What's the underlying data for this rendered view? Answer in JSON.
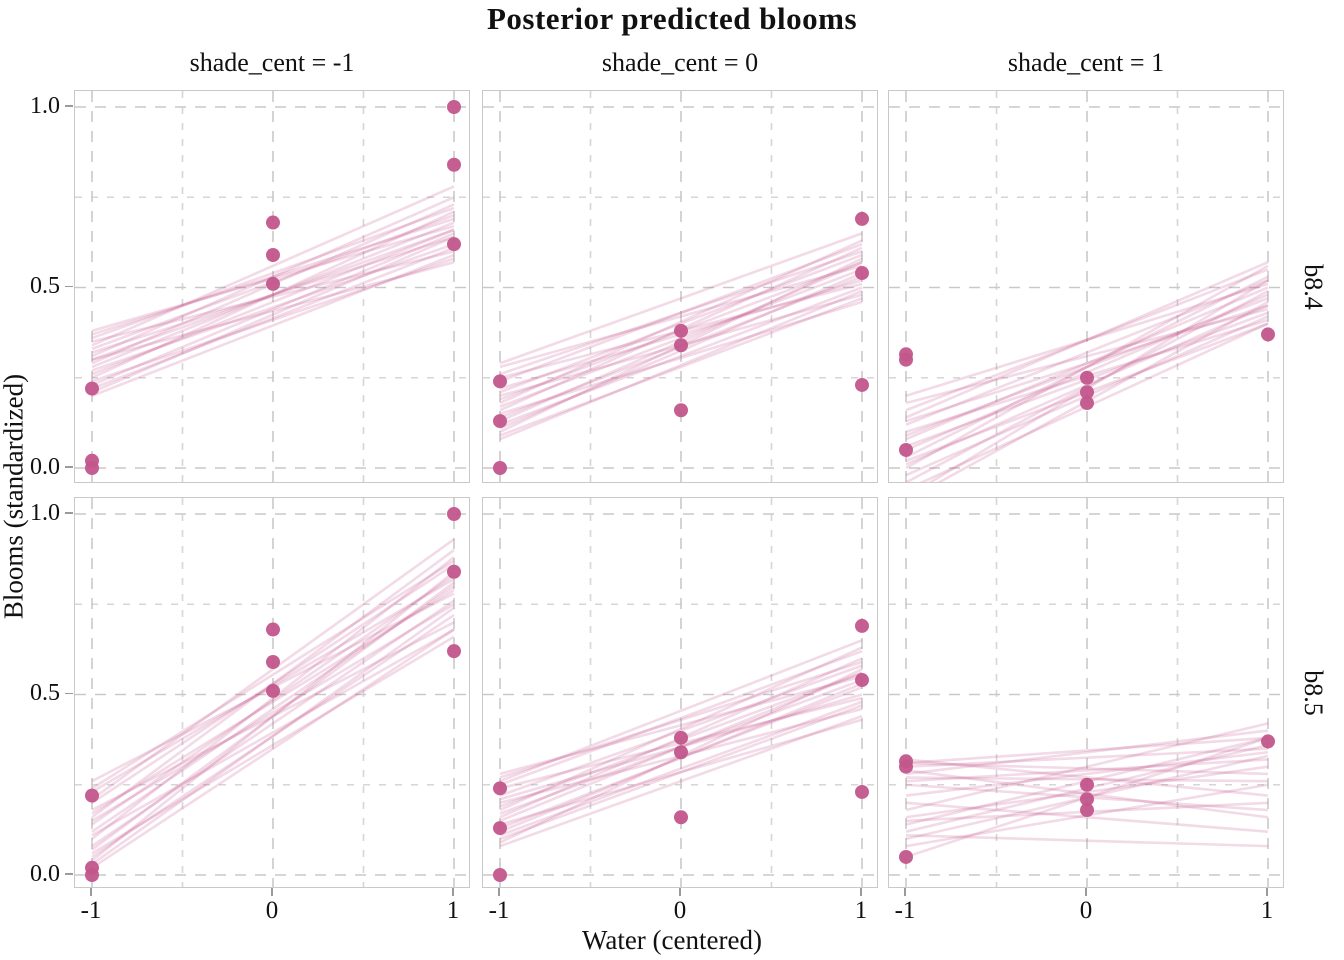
{
  "chart_data": {
    "type": "scatter",
    "title": "Posterior predicted blooms",
    "xlabel": "Water (centered)",
    "ylabel": "Blooms (standardized)",
    "col_facets": [
      "shade_cent = -1",
      "shade_cent = 0",
      "shade_cent = 1"
    ],
    "row_facets": [
      "b8.4",
      "b8.5"
    ],
    "x_tick_labels": [
      "-1",
      "0",
      "1"
    ],
    "y_tick_labels": [
      "1.0",
      "0.5",
      "0.0"
    ],
    "x_ticks": [
      -1,
      0,
      1
    ],
    "y_ticks": [
      1.0,
      0.5,
      0.0
    ],
    "xlim": [
      -1.1,
      1.1
    ],
    "ylim": [
      -0.05,
      1.05
    ],
    "grid": "dashed gray, major at ticks and minor at halves",
    "legend": "none",
    "n_posterior_lines_per_panel": 20,
    "colors": {
      "point": "#C2568C",
      "line": "#C2568C",
      "line_opacity": 0.22,
      "strip_bg": "#B3DAC6",
      "grid_major": "#c9c9c9",
      "grid_minor": "#d6d6d6",
      "panel_border": "#c9c9c9",
      "tick": "#9a9a9a",
      "text": "#111111"
    },
    "panels": [
      {
        "row": "b8.4",
        "col": "shade_cent = -1",
        "points": [
          [
            -1,
            0.0
          ],
          [
            -1,
            0.02
          ],
          [
            -1,
            0.22
          ],
          [
            0,
            0.51
          ],
          [
            0,
            0.59
          ],
          [
            0,
            0.68
          ],
          [
            1,
            0.62
          ],
          [
            1,
            0.84
          ],
          [
            1,
            1.0
          ]
        ],
        "lines": [
          [
            0.3,
            0.66
          ],
          [
            0.27,
            0.62
          ],
          [
            0.33,
            0.7
          ],
          [
            0.24,
            0.58
          ],
          [
            0.36,
            0.72
          ],
          [
            0.21,
            0.64
          ],
          [
            0.31,
            0.75
          ],
          [
            0.28,
            0.68
          ],
          [
            0.35,
            0.6
          ],
          [
            0.25,
            0.71
          ],
          [
            0.38,
            0.67
          ],
          [
            0.22,
            0.61
          ],
          [
            0.32,
            0.64
          ],
          [
            0.29,
            0.73
          ],
          [
            0.26,
            0.66
          ],
          [
            0.34,
            0.78
          ],
          [
            0.2,
            0.59
          ],
          [
            0.37,
            0.69
          ],
          [
            0.3,
            0.57
          ],
          [
            0.23,
            0.65
          ]
        ]
      },
      {
        "row": "b8.4",
        "col": "shade_cent = 0",
        "points": [
          [
            -1,
            0.0
          ],
          [
            -1,
            0.13
          ],
          [
            -1,
            0.24
          ],
          [
            0,
            0.16
          ],
          [
            0,
            0.34
          ],
          [
            0,
            0.38
          ],
          [
            1,
            0.23
          ],
          [
            1,
            0.54
          ],
          [
            1,
            0.69
          ]
        ],
        "lines": [
          [
            0.17,
            0.55
          ],
          [
            0.12,
            0.5
          ],
          [
            0.21,
            0.59
          ],
          [
            0.09,
            0.47
          ],
          [
            0.24,
            0.62
          ],
          [
            0.14,
            0.53
          ],
          [
            0.19,
            0.57
          ],
          [
            0.1,
            0.58
          ],
          [
            0.26,
            0.6
          ],
          [
            0.15,
            0.46
          ],
          [
            0.22,
            0.52
          ],
          [
            0.08,
            0.49
          ],
          [
            0.18,
            0.63
          ],
          [
            0.28,
            0.56
          ],
          [
            0.11,
            0.54
          ],
          [
            0.2,
            0.48
          ],
          [
            0.16,
            0.61
          ],
          [
            0.13,
            0.57
          ],
          [
            0.25,
            0.51
          ],
          [
            0.29,
            0.65
          ]
        ]
      },
      {
        "row": "b8.4",
        "col": "shade_cent = 1",
        "points": [
          [
            -1,
            0.05
          ],
          [
            -1,
            0.3
          ],
          [
            -1,
            0.315
          ],
          [
            0,
            0.18
          ],
          [
            0,
            0.21
          ],
          [
            0,
            0.25
          ],
          [
            1,
            0.37
          ]
        ],
        "lines": [
          [
            0.05,
            0.48
          ],
          [
            -0.02,
            0.42
          ],
          [
            0.12,
            0.52
          ],
          [
            0.01,
            0.45
          ],
          [
            0.16,
            0.55
          ],
          [
            -0.06,
            0.4
          ],
          [
            0.08,
            0.5
          ],
          [
            0.18,
            0.44
          ],
          [
            -0.09,
            0.46
          ],
          [
            0.03,
            0.53
          ],
          [
            0.1,
            0.41
          ],
          [
            0.14,
            0.57
          ],
          [
            -0.04,
            0.49
          ],
          [
            0.06,
            0.43
          ],
          [
            0.2,
            0.51
          ],
          [
            0.0,
            0.56
          ],
          [
            0.09,
            0.47
          ],
          [
            -0.08,
            0.52
          ],
          [
            0.13,
            0.45
          ],
          [
            0.02,
            0.4
          ]
        ]
      },
      {
        "row": "b8.5",
        "col": "shade_cent = -1",
        "points": [
          [
            -1,
            0.0
          ],
          [
            -1,
            0.02
          ],
          [
            -1,
            0.22
          ],
          [
            0,
            0.51
          ],
          [
            0,
            0.59
          ],
          [
            0,
            0.68
          ],
          [
            1,
            0.62
          ],
          [
            1,
            0.84
          ],
          [
            1,
            1.0
          ]
        ],
        "lines": [
          [
            0.12,
            0.8
          ],
          [
            0.05,
            0.72
          ],
          [
            0.2,
            0.86
          ],
          [
            0.02,
            0.68
          ],
          [
            0.16,
            0.9
          ],
          [
            0.08,
            0.76
          ],
          [
            0.23,
            0.82
          ],
          [
            0.04,
            0.84
          ],
          [
            0.18,
            0.7
          ],
          [
            0.1,
            0.88
          ],
          [
            0.26,
            0.78
          ],
          [
            0.06,
            0.66
          ],
          [
            0.14,
            0.83
          ],
          [
            0.21,
            0.93
          ],
          [
            0.03,
            0.74
          ],
          [
            0.17,
            0.79
          ],
          [
            0.11,
            0.68
          ],
          [
            0.24,
            0.87
          ],
          [
            0.07,
            0.81
          ],
          [
            0.15,
            0.75
          ]
        ]
      },
      {
        "row": "b8.5",
        "col": "shade_cent = 0",
        "points": [
          [
            -1,
            0.0
          ],
          [
            -1,
            0.13
          ],
          [
            -1,
            0.24
          ],
          [
            0,
            0.16
          ],
          [
            0,
            0.34
          ],
          [
            0,
            0.38
          ],
          [
            1,
            0.23
          ],
          [
            1,
            0.54
          ],
          [
            1,
            0.69
          ]
        ],
        "lines": [
          [
            0.17,
            0.54
          ],
          [
            0.11,
            0.48
          ],
          [
            0.22,
            0.58
          ],
          [
            0.08,
            0.44
          ],
          [
            0.25,
            0.62
          ],
          [
            0.13,
            0.52
          ],
          [
            0.19,
            0.56
          ],
          [
            0.09,
            0.57
          ],
          [
            0.27,
            0.59
          ],
          [
            0.14,
            0.43
          ],
          [
            0.21,
            0.5
          ],
          [
            0.1,
            0.47
          ],
          [
            0.18,
            0.63
          ],
          [
            0.28,
            0.55
          ],
          [
            0.12,
            0.53
          ],
          [
            0.2,
            0.46
          ],
          [
            0.16,
            0.6
          ],
          [
            0.15,
            0.56
          ],
          [
            0.24,
            0.49
          ],
          [
            0.26,
            0.65
          ]
        ]
      },
      {
        "row": "b8.5",
        "col": "shade_cent = 1",
        "points": [
          [
            -1,
            0.05
          ],
          [
            -1,
            0.3
          ],
          [
            -1,
            0.315
          ],
          [
            0,
            0.18
          ],
          [
            0,
            0.21
          ],
          [
            0,
            0.25
          ],
          [
            1,
            0.37
          ]
        ],
        "lines": [
          [
            0.3,
            0.35
          ],
          [
            0.25,
            0.18
          ],
          [
            0.14,
            0.38
          ],
          [
            0.31,
            0.28
          ],
          [
            0.1,
            0.33
          ],
          [
            0.28,
            0.4
          ],
          [
            0.2,
            0.12
          ],
          [
            0.16,
            0.3
          ],
          [
            0.32,
            0.22
          ],
          [
            0.12,
            0.36
          ],
          [
            0.26,
            0.32
          ],
          [
            0.08,
            0.25
          ],
          [
            0.29,
            0.16
          ],
          [
            0.18,
            0.42
          ],
          [
            0.22,
            0.34
          ],
          [
            0.05,
            0.38
          ],
          [
            0.27,
            0.26
          ],
          [
            0.15,
            0.2
          ],
          [
            0.31,
            0.38
          ],
          [
            0.11,
            0.08
          ]
        ]
      }
    ]
  }
}
